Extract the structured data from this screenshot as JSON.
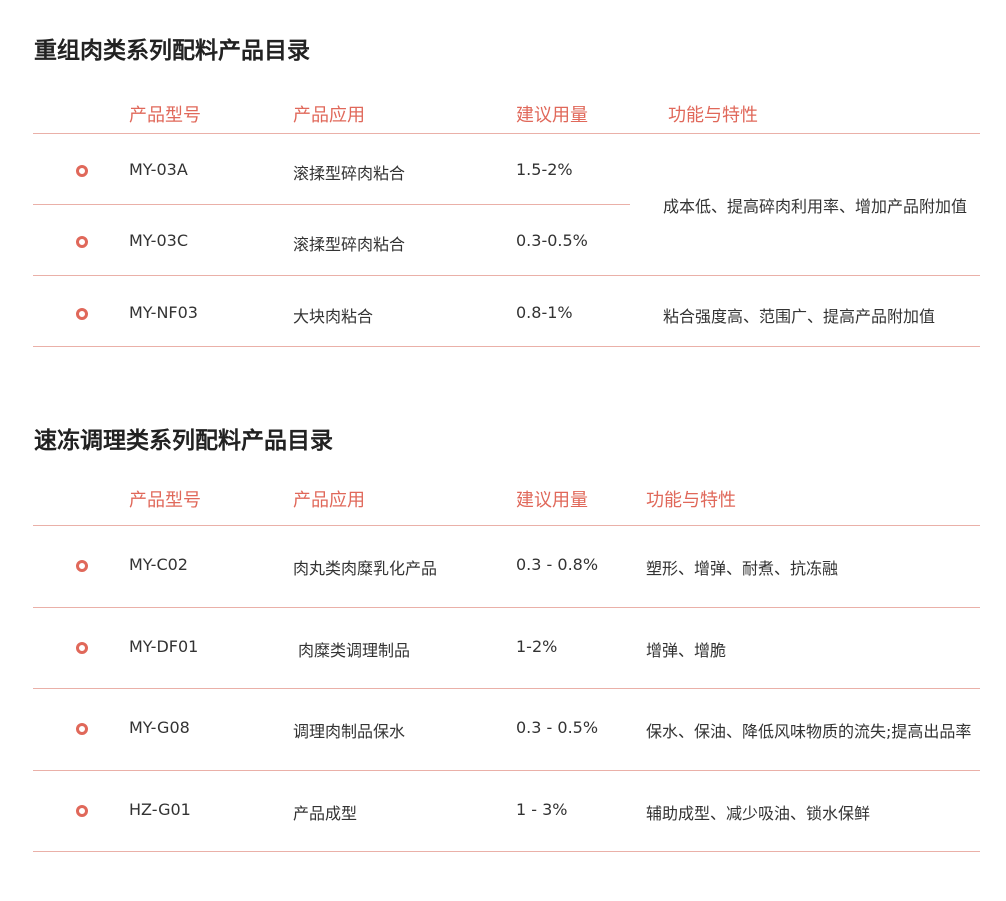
{
  "sections": [
    {
      "title": "重组肉类系列配料产品目录",
      "headers": [
        "产品型号",
        "产品应用",
        "建议用量",
        "功能与特性"
      ],
      "rows": [
        {
          "model": "MY-03A",
          "application": "滚揉型碎肉粘合",
          "dosage": "1.5-2%"
        },
        {
          "model": "MY-03C",
          "application": "滚揉型碎肉粘合",
          "dosage": "0.3-0.5%"
        },
        {
          "model": "MY-NF03",
          "application": "大块肉粘合",
          "dosage": "0.8-1%",
          "feature": "粘合强度高、范围广、提高产品附加值"
        }
      ],
      "merged_feature": "成本低、提高碎肉利用率、增加产品附加值"
    },
    {
      "title": "速冻调理类系列配料产品目录",
      "headers": [
        "产品型号",
        "产品应用",
        "建议用量",
        "功能与特性"
      ],
      "rows": [
        {
          "model": "MY-C02",
          "application": "肉丸类肉糜乳化产品",
          "dosage": "0.3 - 0.8%",
          "feature": "塑形、增弹、耐煮、抗冻融"
        },
        {
          "model": "MY-DF01",
          "application": "肉糜类调理制品",
          "dosage": "1-2%",
          "feature": "增弹、增脆"
        },
        {
          "model": "MY-G08",
          "application": "调理肉制品保水",
          "dosage": "0.3 - 0.5%",
          "feature": "保水、保油、降低风味物质的流失;提高出品率"
        },
        {
          "model": "HZ-G01",
          "application": "产品成型",
          "dosage": "1 - 3%",
          "feature": "辅助成型、减少吸油、锁水保鲜"
        }
      ]
    }
  ],
  "accent_color": "#e0685a"
}
